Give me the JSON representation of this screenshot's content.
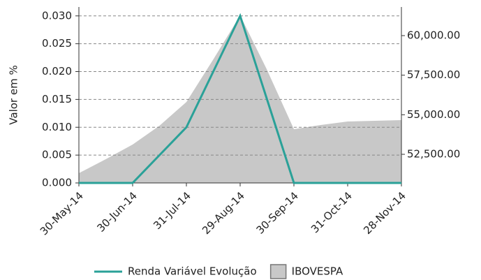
{
  "chart_data": {
    "type": "line",
    "y_label": "Valor em %",
    "categories": [
      "30-May-14",
      null,
      "30-Jun-14",
      null,
      "31-Jul-14",
      null,
      "29-Aug-14",
      null,
      "30-Sep-14",
      null,
      "31-Oct-14",
      null,
      "28-Nov-14"
    ],
    "series": [
      {
        "name": "Renda Variável Evolução",
        "color": "#2aa198",
        "kind": "line",
        "values": [
          0,
          0,
          0,
          0.005,
          0.01,
          0.02,
          0.03,
          0.015,
          0,
          0,
          0,
          0,
          0
        ]
      },
      {
        "name": "IBOVESPA",
        "color": "#c8c8c8",
        "kind": "area",
        "axis": "y2",
        "values": [
          51310,
          52190,
          53120,
          54310,
          55805,
          58496,
          61274,
          57835,
          54087,
          54352,
          54572,
          54616,
          54660
        ]
      }
    ],
    "ylim": [
      0,
      0.0316
    ],
    "yticks": [
      {
        "value": 0,
        "label": "0.000"
      },
      {
        "value": 0.005,
        "label": "0.005"
      },
      {
        "value": 0.01,
        "label": "0.010"
      },
      {
        "value": 0.015,
        "label": "0.015"
      },
      {
        "value": 0.02,
        "label": "0.020"
      },
      {
        "value": 0.025,
        "label": "0.025"
      },
      {
        "value": 0.03,
        "label": "0.030"
      }
    ],
    "y2lim": [
      50692,
      61808
    ],
    "y2ticks": [
      {
        "value": 52500,
        "label": "52,500.00"
      },
      {
        "value": 55000,
        "label": "55,000.00"
      },
      {
        "value": 57500,
        "label": "57,500.00"
      },
      {
        "value": 60000,
        "label": "60,000.00"
      }
    ],
    "grid": true
  }
}
